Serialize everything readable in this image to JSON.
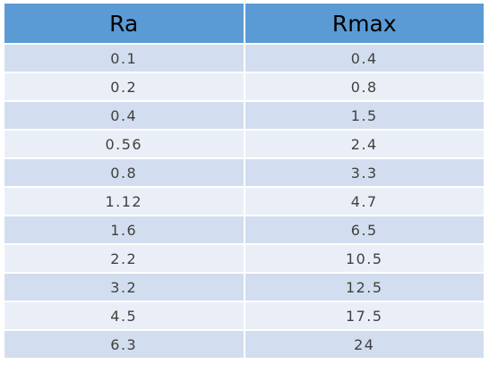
{
  "chart_data": {
    "type": "table",
    "columns": [
      "Ra",
      "Rmax"
    ],
    "rows": [
      [
        "0.1",
        "0.4"
      ],
      [
        "0.2",
        "0.8"
      ],
      [
        "0.4",
        "1.5"
      ],
      [
        "0.56",
        "2.4"
      ],
      [
        "0.8",
        "3.3"
      ],
      [
        "1.12",
        "4.7"
      ],
      [
        "1.6",
        "6.5"
      ],
      [
        "2.2",
        "10.5"
      ],
      [
        "3.2",
        "12.5"
      ],
      [
        "4.5",
        "17.5"
      ],
      [
        "6.3",
        "24"
      ]
    ]
  },
  "colors": {
    "header_bg": "#5b9bd5",
    "row_odd_bg": "#d2deef",
    "row_even_bg": "#eaeff7"
  }
}
